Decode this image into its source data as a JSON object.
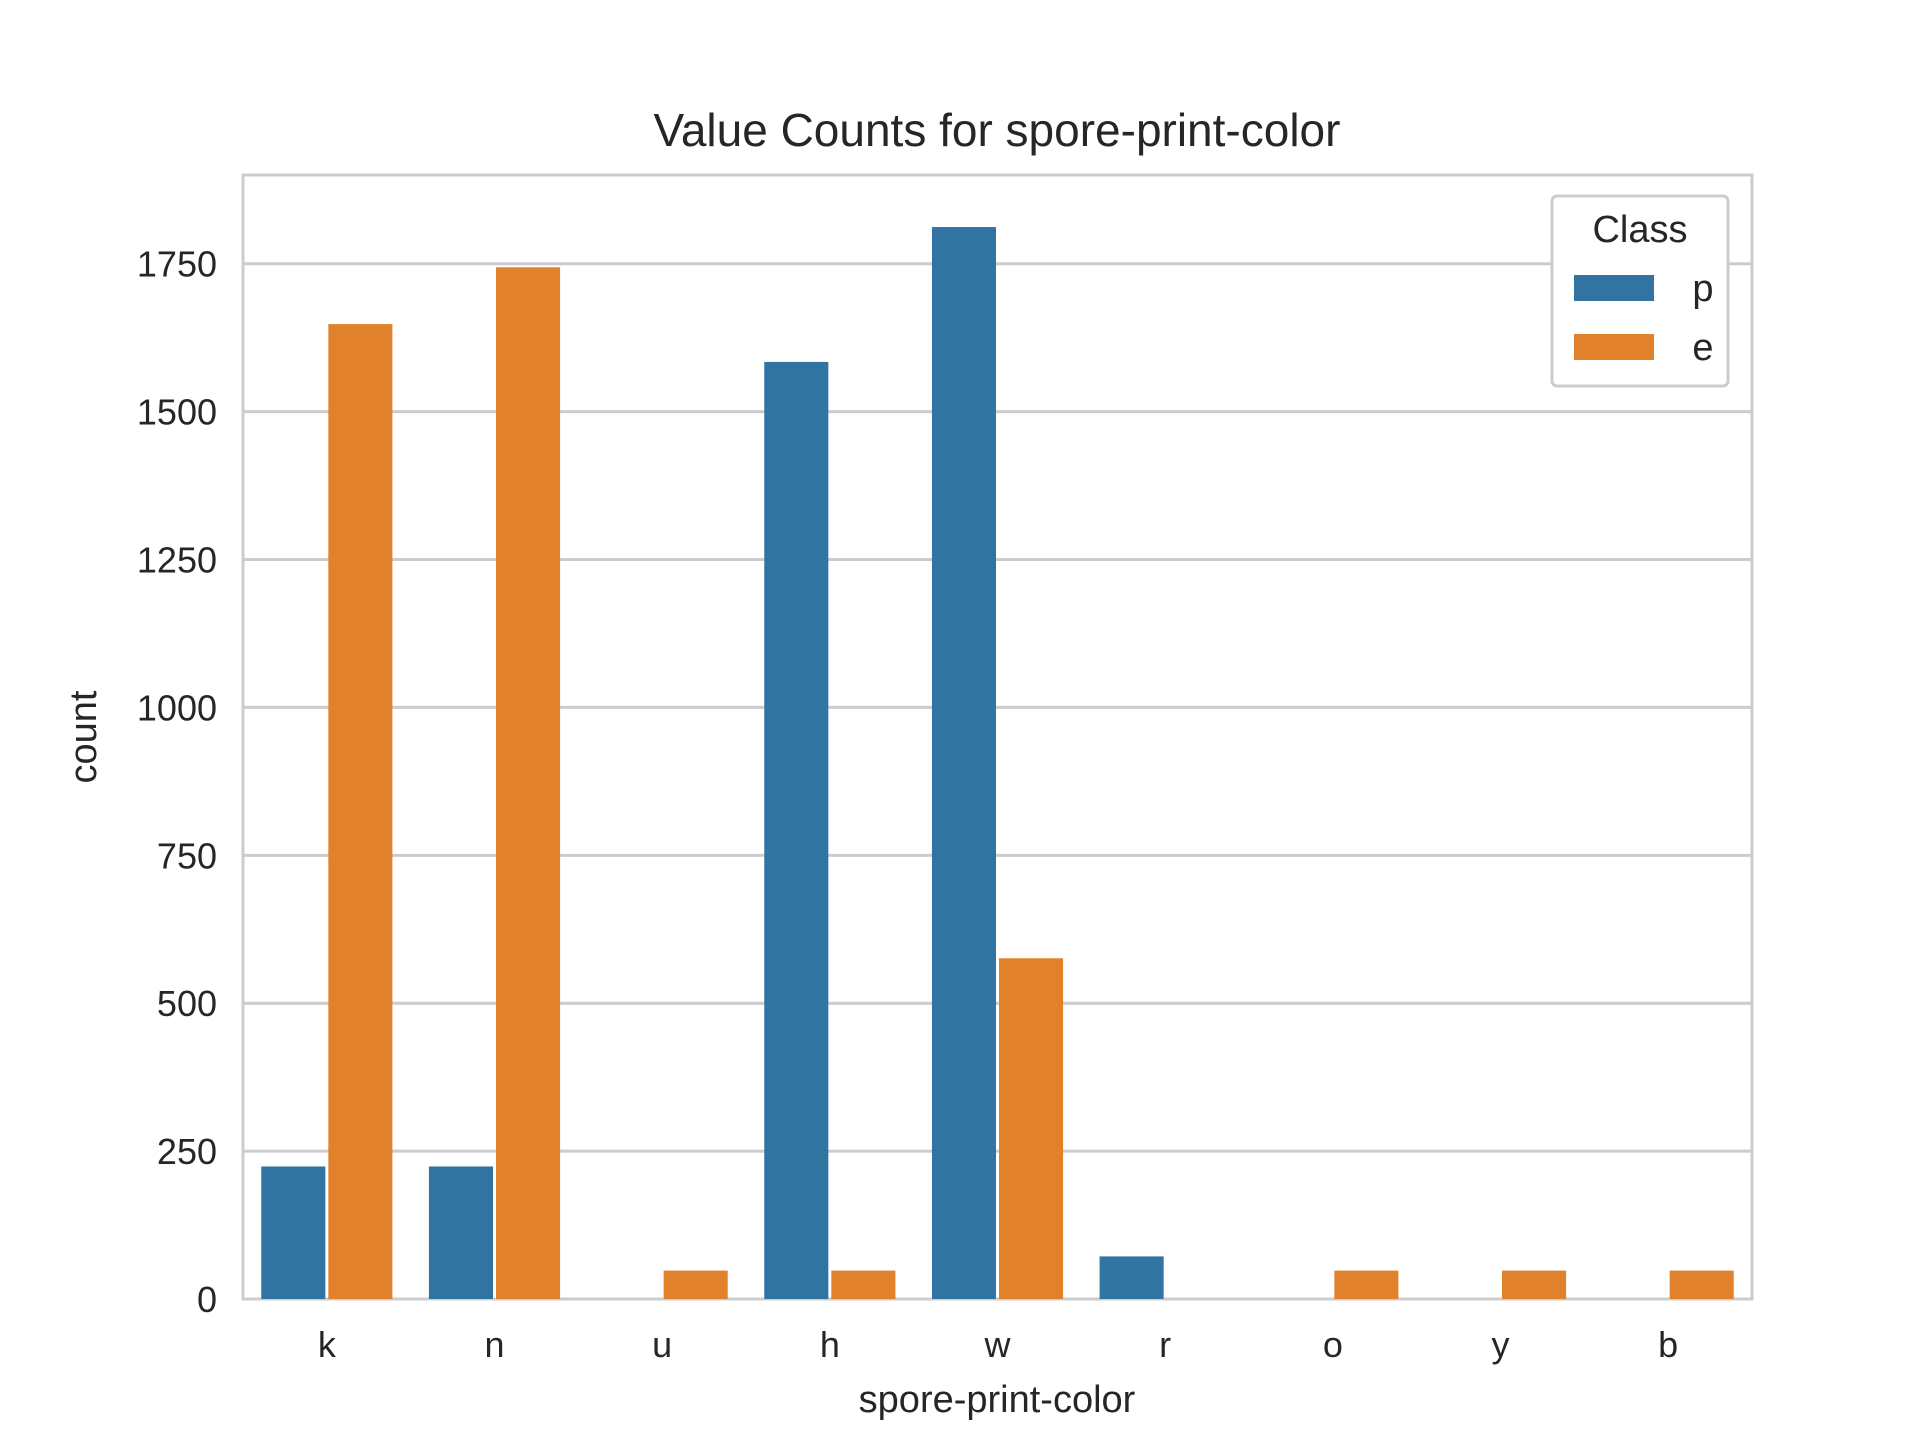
{
  "chart_data": {
    "type": "bar",
    "title": "Value Counts for spore-print-color",
    "xlabel": "spore-print-color",
    "ylabel": "count",
    "categories": [
      "k",
      "n",
      "u",
      "h",
      "w",
      "r",
      "o",
      "y",
      "b"
    ],
    "series": [
      {
        "name": "p",
        "color": "#3274a1",
        "values": [
          224,
          224,
          0,
          1584,
          1812,
          72,
          0,
          0,
          0
        ]
      },
      {
        "name": "e",
        "color": "#e1812c",
        "values": [
          1648,
          1744,
          48,
          48,
          576,
          0,
          48,
          48,
          48
        ]
      }
    ],
    "ylim": [
      0,
      1900
    ],
    "yticks": [
      0,
      250,
      500,
      750,
      1000,
      1250,
      1500,
      1750
    ],
    "grid": true,
    "legend": {
      "title": "Class",
      "placement": "top-right"
    }
  }
}
